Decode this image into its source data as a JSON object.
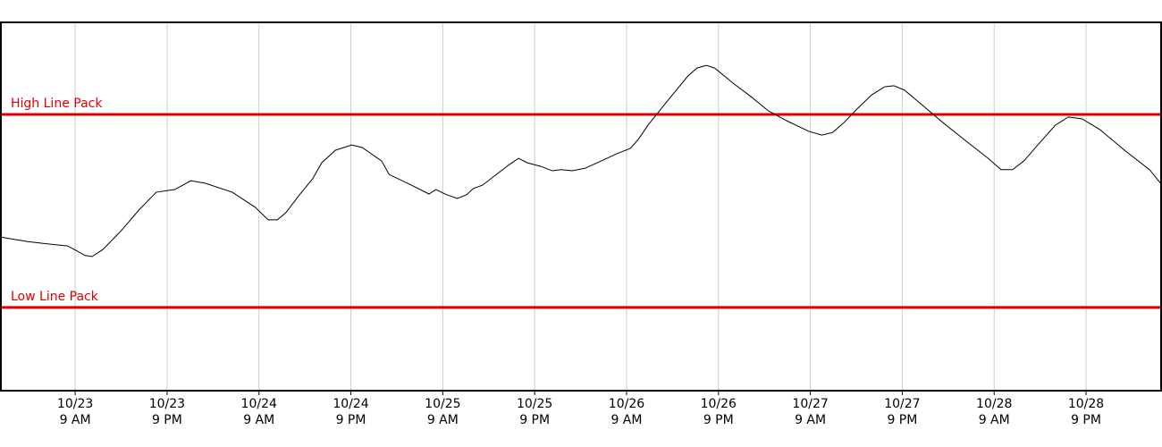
{
  "chart_data": {
    "type": "line",
    "xlim": [
      -0.7,
      150.8
    ],
    "ylim": [
      0,
      100
    ],
    "xticks": [
      {
        "value": 9,
        "label": "10/23\n9 AM"
      },
      {
        "value": 21,
        "label": "10/23\n9 PM"
      },
      {
        "value": 33,
        "label": "10/24\n9 AM"
      },
      {
        "value": 45,
        "label": "10/24\n9 PM"
      },
      {
        "value": 57,
        "label": "10/25\n9 AM"
      },
      {
        "value": 69,
        "label": "10/25\n9 PM"
      },
      {
        "value": 81,
        "label": "10/26\n9 AM"
      },
      {
        "value": 93,
        "label": "10/26\n9 PM"
      },
      {
        "value": 105,
        "label": "10/27\n9 AM"
      },
      {
        "value": 117,
        "label": "10/27\n9 PM"
      },
      {
        "value": 129,
        "label": "10/28\n9 AM"
      },
      {
        "value": 141,
        "label": "10/28\n9 PM"
      }
    ],
    "grid": true,
    "lines": [
      {
        "name": "High Line Pack",
        "value": 75,
        "color": "#e00000"
      },
      {
        "name": "Low Line Pack",
        "value": 22.6,
        "color": "#e00000"
      }
    ],
    "series": [
      {
        "color": "#000000",
        "x": [
          -0.7,
          2.7,
          5.6,
          8.0,
          9.1,
          10.3,
          11.2,
          12.6,
          15.0,
          17.3,
          19.6,
          22.0,
          24.1,
          26.0,
          29.5,
          32.5,
          34.2,
          35.4,
          36.5,
          38.3,
          40.0,
          41.2,
          43.0,
          45.1,
          46.5,
          49.0,
          50.0,
          52.9,
          55.2,
          56.1,
          57.5,
          58.9,
          60.1,
          61.0,
          62.2,
          64.0,
          65.7,
          66.9,
          68.0,
          69.8,
          71.3,
          72.5,
          73.9,
          75.6,
          77.4,
          79.7,
          81.5,
          82.6,
          83.8,
          85.5,
          87.3,
          89.0,
          90.2,
          91.4,
          92.5,
          94.9,
          97.2,
          99.5,
          101.9,
          104.8,
          106.5,
          107.9,
          109.4,
          111.2,
          113.0,
          114.7,
          115.9,
          117.3,
          119.4,
          122.3,
          125.2,
          128.2,
          129.9,
          131.4,
          132.9,
          134.6,
          137.0,
          138.7,
          140.5,
          142.8,
          146.3,
          149.3,
          150.8
        ],
        "values": [
          41.7,
          40.5,
          39.8,
          39.3,
          38.1,
          36.7,
          36.4,
          38.3,
          43.4,
          49.0,
          53.9,
          54.6,
          57.0,
          56.3,
          53.9,
          49.8,
          46.4,
          46.4,
          48.3,
          53.2,
          57.5,
          61.9,
          65.3,
          66.7,
          66.0,
          62.4,
          58.7,
          55.8,
          53.4,
          54.6,
          53.2,
          52.2,
          53.2,
          54.9,
          55.8,
          58.7,
          61.4,
          63.1,
          61.9,
          60.9,
          59.7,
          60.0,
          59.7,
          60.4,
          62.1,
          64.3,
          65.8,
          68.4,
          72.1,
          76.5,
          81.1,
          85.4,
          87.6,
          88.3,
          87.6,
          83.5,
          79.9,
          76.0,
          73.3,
          70.4,
          69.4,
          70.1,
          72.8,
          76.7,
          80.3,
          82.5,
          82.8,
          81.6,
          77.9,
          72.8,
          68.0,
          63.1,
          60.0,
          60.0,
          62.4,
          66.5,
          72.1,
          74.3,
          73.8,
          70.9,
          64.8,
          60.0,
          56.1
        ]
      }
    ]
  }
}
